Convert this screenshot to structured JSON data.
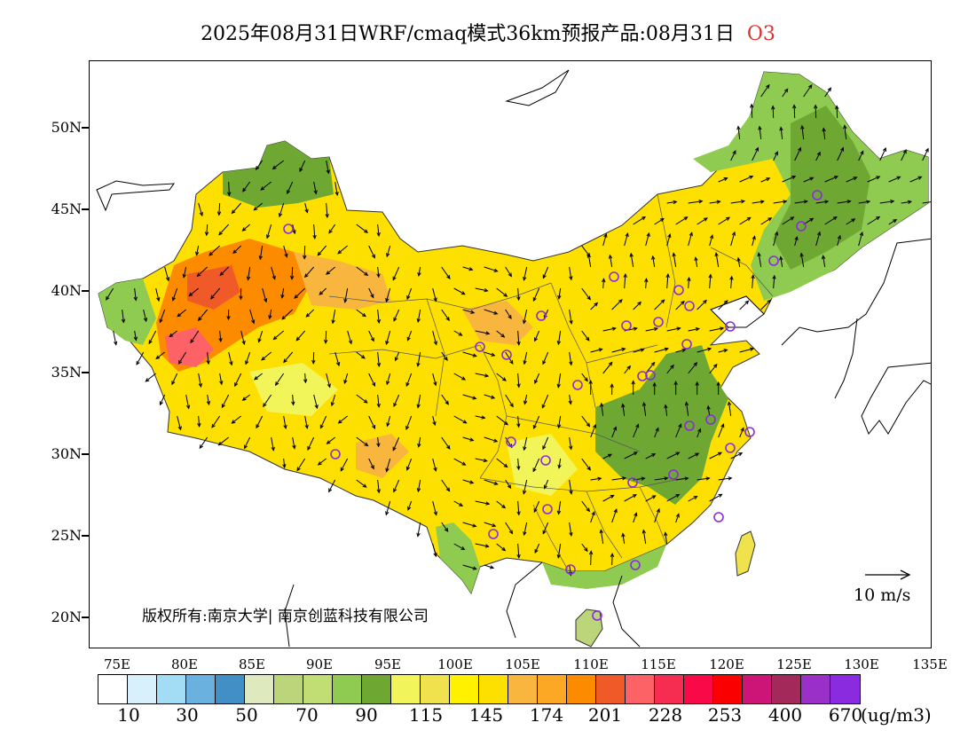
{
  "title": {
    "main": "2025年08月31日WRF/cmaq模式36km预报产品:08月31日",
    "species": "O3"
  },
  "latitude_labels": [
    "50N",
    "45N",
    "40N",
    "35N",
    "30N",
    "25N",
    "20N"
  ],
  "longitude_labels": [
    "75E",
    "80E",
    "85E",
    "90E",
    "95E",
    "100E",
    "105E",
    "110E",
    "115E",
    "120E",
    "125E",
    "130E",
    "135E"
  ],
  "colorbar": {
    "colors": [
      "#ffffff",
      "#d7f0fb",
      "#a3dcf5",
      "#6ab1df",
      "#418fc4",
      "#dfe9be",
      "#bcd57b",
      "#c0de74",
      "#8fcb50",
      "#6ea833",
      "#f2f55a",
      "#f0e24c",
      "#fff100",
      "#fde000",
      "#f8b63e",
      "#fca825",
      "#fd8b00",
      "#f05a28",
      "#fd6266",
      "#f62c51",
      "#f90948",
      "#fb0000",
      "#cc1577",
      "#a3295a",
      "#9b30c9",
      "#8b2be0"
    ],
    "labels": [
      "10",
      "30",
      "50",
      "70",
      "90",
      "115",
      "145",
      "174",
      "201",
      "228",
      "253",
      "400",
      "670"
    ],
    "unit": "(ug/m3)"
  },
  "copyright": "版权所有:南京大学| 南京创蓝科技有限公司",
  "reference_vector": {
    "label": "10 m/s"
  },
  "palette": {
    "title_species": "#e0302a",
    "station_marker": "#8a2be2"
  }
}
